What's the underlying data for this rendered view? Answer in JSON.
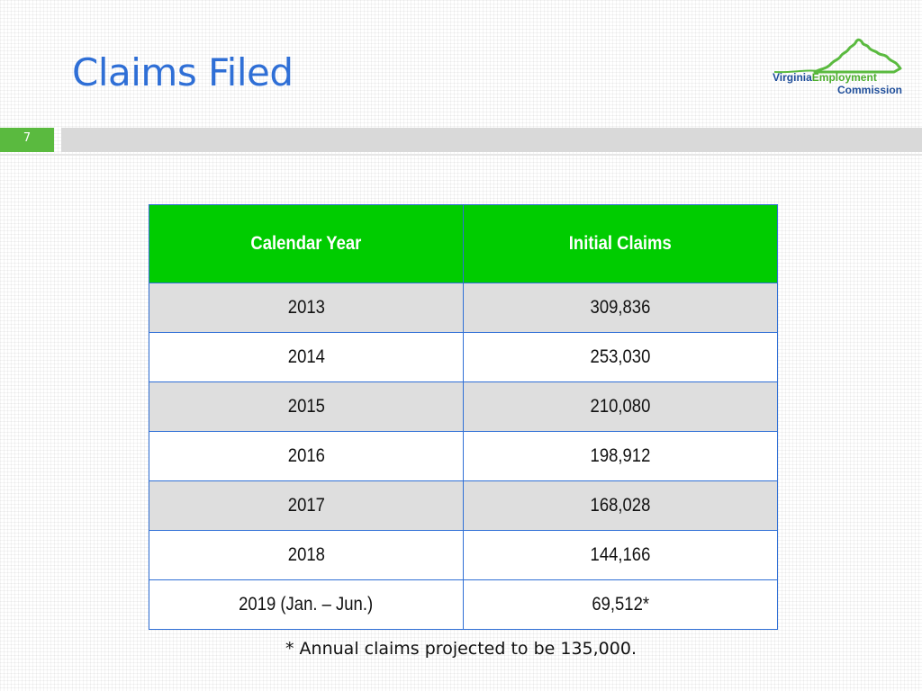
{
  "slide": {
    "title": "Claims Filed",
    "page_number": "7"
  },
  "logo": {
    "line1_word1": "Virginia",
    "line1_word2": "Employment",
    "line2": "Commission"
  },
  "table": {
    "headers": [
      "Calendar Year",
      "Initial Claims"
    ],
    "rows": [
      {
        "year": "2013",
        "claims": "309,836"
      },
      {
        "year": "2014",
        "claims": "253,030"
      },
      {
        "year": "2015",
        "claims": "210,080"
      },
      {
        "year": "2016",
        "claims": "198,912"
      },
      {
        "year": "2017",
        "claims": "168,028"
      },
      {
        "year": "2018",
        "claims": "144,166"
      },
      {
        "year": "2019 (Jan. – Jun.)",
        "claims": "69,512*"
      }
    ]
  },
  "footnote": "* Annual claims projected to be 135,000.",
  "colors": {
    "title": "#2f6fd6",
    "header_bg": "#00cc00",
    "border": "#2f6fd6",
    "accent_green": "#5aba3f",
    "row_shade": "#dedede"
  }
}
